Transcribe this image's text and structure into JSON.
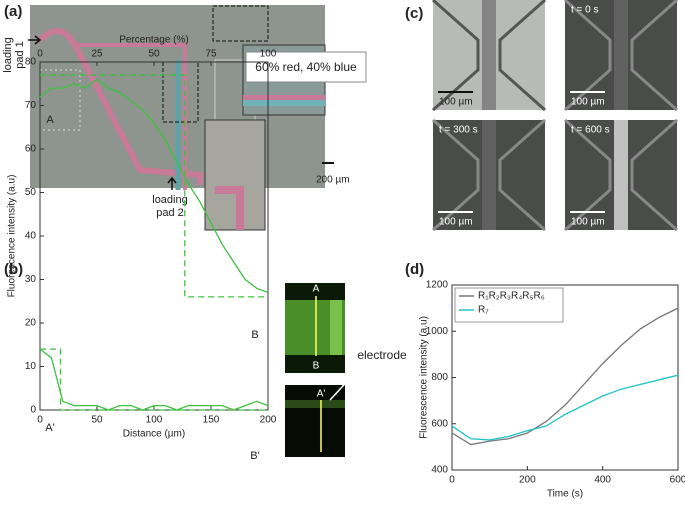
{
  "panel_a": {
    "label": "(a)",
    "pad1": [
      "loading",
      "pad 1"
    ],
    "pad2": [
      "loading",
      "pad 2"
    ],
    "inset": "60% red, 40% blue",
    "scale": "200 µm"
  },
  "panel_c": {
    "label": "(c)",
    "times": [
      "t = 0 s",
      "t = 300 s",
      "t = 600 s"
    ],
    "scales": [
      "100 µm",
      "100 µm",
      "100 µm",
      "100 µm"
    ]
  },
  "chart_data": [
    {
      "type": "line",
      "panel_label": "(b)",
      "xlabel": "Distance (µm)",
      "ylabel": "Fluorescence intensity (a.u)",
      "x2label": "Percentage (%)",
      "xlim": [
        0,
        200
      ],
      "xticks": [
        0,
        50,
        100,
        150,
        200
      ],
      "ylim": [
        0,
        80
      ],
      "yticks": [
        0,
        10,
        20,
        30,
        40,
        50,
        60,
        70,
        80
      ],
      "x2lim": [
        0,
        100
      ],
      "x2ticks": [
        0,
        25,
        50,
        75,
        100
      ],
      "x": [
        0,
        10,
        20,
        30,
        40,
        50,
        60,
        70,
        80,
        90,
        100,
        110,
        120,
        130,
        140,
        150,
        160,
        170,
        180,
        190,
        200
      ],
      "series": [
        {
          "color": "#3cc43c",
          "style": "solid",
          "values": [
            72,
            74,
            74,
            75,
            74,
            76,
            74,
            73,
            71,
            69,
            66,
            62,
            57,
            52,
            48,
            43,
            38,
            34,
            30,
            28,
            27
          ]
        },
        {
          "color": "#3cc43c",
          "style": "solid",
          "values": [
            14,
            12,
            2,
            1,
            1,
            1,
            0,
            1,
            1,
            0,
            1,
            1,
            0,
            1,
            1,
            1,
            1,
            0,
            1,
            2,
            1
          ]
        },
        {
          "color": "#3cc43c",
          "style": "dashed",
          "x": [
            0,
            127,
            127,
            200
          ],
          "values": [
            77,
            77,
            26,
            26
          ]
        },
        {
          "color": "#3cc43c",
          "style": "dashed",
          "x": [
            0,
            18,
            18,
            200
          ],
          "values": [
            14,
            14,
            0,
            0
          ]
        }
      ],
      "point_labels": [
        "A",
        "B",
        "A'",
        "B'"
      ],
      "inset_labels": [
        "A",
        "B",
        "A'",
        "B'",
        "electrode"
      ]
    },
    {
      "type": "line",
      "panel_label": "(d)",
      "xlabel": "Time (s)",
      "ylabel": "Fluorescence intensity (a.u)",
      "xlim": [
        0,
        600
      ],
      "xticks": [
        0,
        200,
        400,
        600
      ],
      "ylim": [
        400,
        1200
      ],
      "yticks": [
        400,
        600,
        800,
        1000,
        1200
      ],
      "x": [
        0,
        50,
        100,
        150,
        200,
        250,
        300,
        350,
        400,
        450,
        500,
        550,
        600
      ],
      "series": [
        {
          "name": "R₁R₂R₃R₄R₅R₆",
          "color": "#777777",
          "style": "solid",
          "values": [
            560,
            510,
            525,
            535,
            560,
            610,
            680,
            770,
            860,
            940,
            1010,
            1060,
            1100
          ]
        },
        {
          "name": "R₇",
          "color": "#1fc4c4",
          "style": "solid",
          "values": [
            590,
            535,
            530,
            545,
            570,
            590,
            640,
            680,
            720,
            750,
            770,
            790,
            810
          ]
        }
      ]
    }
  ]
}
